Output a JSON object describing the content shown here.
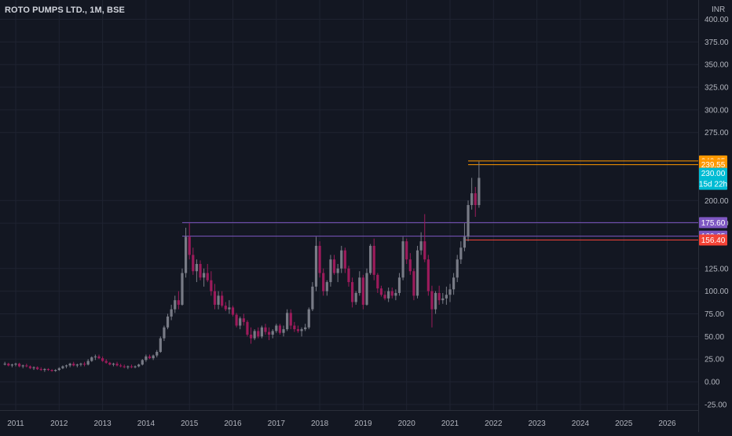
{
  "header": {
    "symbol_title": "ROTO PUMPS LTD., 1M, BSE",
    "currency": "INR"
  },
  "colors": {
    "background": "#131722",
    "grid": "#1f2331",
    "axis_text": "#b2b5be",
    "up_candle": "#787b86",
    "down_candle": "#9c1b5b",
    "level_purple": "#7e57c2",
    "level_orange": "#ff9800",
    "level_red": "#f44336",
    "current_price": "#00bcd4"
  },
  "chart_data": {
    "type": "candlestick",
    "title": "ROTO PUMPS LTD., 1M, BSE",
    "interval": "1M",
    "currency": "INR",
    "x_axis": {
      "type": "date",
      "range": [
        "2010-10",
        "2026-12"
      ],
      "ticks": [
        "2011",
        "2012",
        "2013",
        "2014",
        "2015",
        "2016",
        "2017",
        "2018",
        "2019",
        "2020",
        "2021",
        "2022",
        "2023",
        "2024",
        "2025",
        "2026"
      ]
    },
    "y_axis": {
      "range": [
        -32,
        407
      ],
      "ticks": [
        "-25.00",
        "0.00",
        "25.00",
        "50.00",
        "75.00",
        "100.00",
        "125.00",
        "175.00",
        "200.00",
        "275.00",
        "300.00",
        "325.00",
        "350.00",
        "375.00",
        "400.00"
      ]
    },
    "grid": true,
    "horizontal_levels": [
      {
        "value": 175.6,
        "label": "175.60",
        "color": "#7e57c2",
        "start": "2014-11"
      },
      {
        "value": 160.65,
        "label": "160.65",
        "color": "#7e57c2",
        "start": "2014-11"
      },
      {
        "value": 156.4,
        "label": "156.40",
        "color": "#f44336",
        "start": "2021-05"
      },
      {
        "value": 243.65,
        "label": "243.65",
        "color": "#ff9800",
        "start": "2021-06"
      },
      {
        "value": 239.55,
        "label": "239.55",
        "color": "#ff9800",
        "start": "2021-06"
      }
    ],
    "last_price": {
      "value": 230.0,
      "label": "230.00",
      "countdown": "15d 22h",
      "color": "#00bcd4"
    },
    "series": [
      {
        "values": [
          [
            "2010-10",
            20,
            22,
            18,
            20
          ],
          [
            "2010-11",
            20,
            21,
            17,
            18
          ],
          [
            "2010-12",
            18,
            20,
            16,
            19
          ],
          [
            "2011-01",
            19,
            21,
            17,
            20
          ],
          [
            "2011-02",
            20,
            21,
            16,
            17
          ],
          [
            "2011-03",
            17,
            19,
            15,
            18
          ],
          [
            "2011-04",
            18,
            20,
            16,
            17
          ],
          [
            "2011-05",
            17,
            18,
            14,
            15
          ],
          [
            "2011-06",
            15,
            17,
            13,
            16
          ],
          [
            "2011-07",
            16,
            17,
            13,
            14
          ],
          [
            "2011-08",
            14,
            16,
            12,
            13
          ],
          [
            "2011-09",
            13,
            15,
            11,
            14
          ],
          [
            "2011-10",
            14,
            15,
            12,
            13
          ],
          [
            "2011-11",
            13,
            14,
            11,
            12
          ],
          [
            "2011-12",
            12,
            14,
            11,
            13
          ],
          [
            "2012-01",
            13,
            16,
            12,
            15
          ],
          [
            "2012-02",
            15,
            18,
            14,
            17
          ],
          [
            "2012-03",
            17,
            19,
            15,
            18
          ],
          [
            "2012-04",
            18,
            21,
            16,
            20
          ],
          [
            "2012-05",
            20,
            22,
            17,
            18
          ],
          [
            "2012-06",
            18,
            20,
            16,
            19
          ],
          [
            "2012-07",
            19,
            21,
            17,
            20
          ],
          [
            "2012-08",
            20,
            22,
            17,
            19
          ],
          [
            "2012-09",
            19,
            25,
            18,
            23
          ],
          [
            "2012-10",
            23,
            28,
            22,
            27
          ],
          [
            "2012-11",
            27,
            30,
            24,
            28
          ],
          [
            "2012-12",
            28,
            30,
            25,
            26
          ],
          [
            "2013-01",
            26,
            28,
            22,
            23
          ],
          [
            "2013-02",
            23,
            25,
            20,
            21
          ],
          [
            "2013-03",
            21,
            22,
            18,
            19
          ],
          [
            "2013-04",
            19,
            21,
            17,
            20
          ],
          [
            "2013-05",
            20,
            22,
            17,
            18
          ],
          [
            "2013-06",
            18,
            20,
            16,
            17
          ],
          [
            "2013-07",
            17,
            19,
            15,
            16
          ],
          [
            "2013-08",
            16,
            18,
            14,
            17
          ],
          [
            "2013-09",
            17,
            19,
            15,
            16
          ],
          [
            "2013-10",
            16,
            18,
            15,
            17
          ],
          [
            "2013-11",
            17,
            20,
            16,
            19
          ],
          [
            "2013-12",
            19,
            25,
            18,
            24
          ],
          [
            "2014-01",
            24,
            30,
            22,
            28
          ],
          [
            "2014-02",
            28,
            30,
            25,
            26
          ],
          [
            "2014-03",
            26,
            30,
            24,
            29
          ],
          [
            "2014-04",
            29,
            35,
            27,
            33
          ],
          [
            "2014-05",
            33,
            50,
            32,
            48
          ],
          [
            "2014-06",
            48,
            62,
            45,
            60
          ],
          [
            "2014-07",
            60,
            75,
            58,
            72
          ],
          [
            "2014-08",
            72,
            85,
            68,
            80
          ],
          [
            "2014-09",
            80,
            95,
            76,
            90
          ],
          [
            "2014-10",
            90,
            100,
            80,
            85
          ],
          [
            "2014-11",
            85,
            125,
            84,
            120
          ],
          [
            "2014-12",
            120,
            170,
            115,
            160
          ],
          [
            "2015-01",
            160,
            175,
            135,
            140
          ],
          [
            "2015-02",
            140,
            148,
            118,
            122
          ],
          [
            "2015-03",
            122,
            135,
            110,
            130
          ],
          [
            "2015-04",
            130,
            134,
            112,
            115
          ],
          [
            "2015-05",
            115,
            125,
            105,
            120
          ],
          [
            "2015-06",
            120,
            130,
            110,
            112
          ],
          [
            "2015-07",
            112,
            122,
            95,
            100
          ],
          [
            "2015-08",
            100,
            108,
            80,
            85
          ],
          [
            "2015-09",
            85,
            100,
            80,
            95
          ],
          [
            "2015-10",
            95,
            100,
            82,
            84
          ],
          [
            "2015-11",
            84,
            88,
            78,
            80
          ],
          [
            "2015-12",
            80,
            90,
            75,
            82
          ],
          [
            "2016-01",
            82,
            84,
            72,
            74
          ],
          [
            "2016-02",
            74,
            76,
            60,
            62
          ],
          [
            "2016-03",
            62,
            72,
            58,
            70
          ],
          [
            "2016-04",
            70,
            75,
            62,
            66
          ],
          [
            "2016-05",
            66,
            68,
            50,
            52
          ],
          [
            "2016-06",
            52,
            60,
            42,
            48
          ],
          [
            "2016-07",
            48,
            58,
            46,
            56
          ],
          [
            "2016-08",
            56,
            60,
            48,
            50
          ],
          [
            "2016-09",
            50,
            62,
            48,
            60
          ],
          [
            "2016-10",
            60,
            64,
            52,
            55
          ],
          [
            "2016-11",
            55,
            60,
            46,
            52
          ],
          [
            "2016-12",
            52,
            58,
            48,
            56
          ],
          [
            "2017-01",
            56,
            64,
            54,
            62
          ],
          [
            "2017-02",
            62,
            64,
            52,
            54
          ],
          [
            "2017-03",
            54,
            62,
            50,
            58
          ],
          [
            "2017-04",
            58,
            80,
            56,
            76
          ],
          [
            "2017-05",
            76,
            80,
            58,
            62
          ],
          [
            "2017-06",
            62,
            66,
            55,
            58
          ],
          [
            "2017-07",
            58,
            62,
            54,
            56
          ],
          [
            "2017-08",
            56,
            60,
            50,
            58
          ],
          [
            "2017-09",
            58,
            64,
            56,
            60
          ],
          [
            "2017-10",
            60,
            82,
            58,
            80
          ],
          [
            "2017-11",
            80,
            110,
            78,
            105
          ],
          [
            "2017-12",
            105,
            160,
            100,
            150
          ],
          [
            "2018-01",
            150,
            155,
            115,
            120
          ],
          [
            "2018-02",
            120,
            125,
            95,
            100
          ],
          [
            "2018-03",
            100,
            112,
            95,
            110
          ],
          [
            "2018-04",
            110,
            140,
            105,
            135
          ],
          [
            "2018-05",
            135,
            140,
            118,
            120
          ],
          [
            "2018-06",
            120,
            130,
            110,
            125
          ],
          [
            "2018-07",
            125,
            150,
            120,
            145
          ],
          [
            "2018-08",
            145,
            148,
            120,
            125
          ],
          [
            "2018-09",
            125,
            128,
            105,
            110
          ],
          [
            "2018-10",
            110,
            115,
            82,
            88
          ],
          [
            "2018-11",
            88,
            100,
            85,
            98
          ],
          [
            "2018-12",
            98,
            122,
            95,
            115
          ],
          [
            "2019-01",
            115,
            118,
            80,
            85
          ],
          [
            "2019-02",
            85,
            125,
            84,
            120
          ],
          [
            "2019-03",
            120,
            152,
            118,
            150
          ],
          [
            "2019-04",
            150,
            158,
            112,
            118
          ],
          [
            "2019-05",
            118,
            120,
            98,
            103
          ],
          [
            "2019-06",
            103,
            106,
            94,
            96
          ],
          [
            "2019-07",
            96,
            100,
            90,
            92
          ],
          [
            "2019-08",
            92,
            104,
            88,
            100
          ],
          [
            "2019-09",
            100,
            104,
            92,
            95
          ],
          [
            "2019-10",
            95,
            102,
            90,
            98
          ],
          [
            "2019-11",
            98,
            120,
            95,
            115
          ],
          [
            "2019-12",
            115,
            160,
            112,
            155
          ],
          [
            "2020-01",
            155,
            158,
            130,
            135
          ],
          [
            "2020-02",
            135,
            142,
            118,
            122
          ],
          [
            "2020-03",
            122,
            125,
            90,
            95
          ],
          [
            "2020-04",
            95,
            150,
            92,
            145
          ],
          [
            "2020-05",
            145,
            165,
            140,
            155
          ],
          [
            "2020-06",
            155,
            185,
            132,
            135
          ],
          [
            "2020-07",
            135,
            140,
            95,
            100
          ],
          [
            "2020-08",
            100,
            106,
            60,
            80
          ],
          [
            "2020-09",
            80,
            100,
            75,
            98
          ],
          [
            "2020-10",
            98,
            106,
            85,
            90
          ],
          [
            "2020-11",
            90,
            98,
            86,
            92
          ],
          [
            "2020-12",
            92,
            105,
            85,
            96
          ],
          [
            "2021-01",
            96,
            108,
            88,
            102
          ],
          [
            "2021-02",
            102,
            120,
            96,
            115
          ],
          [
            "2021-03",
            115,
            140,
            110,
            135
          ],
          [
            "2021-04",
            135,
            155,
            130,
            148
          ],
          [
            "2021-05",
            148,
            175,
            144,
            160
          ],
          [
            "2021-06",
            160,
            200,
            155,
            195
          ],
          [
            "2021-07",
            195,
            225,
            190,
            208
          ],
          [
            "2021-08",
            208,
            215,
            182,
            195
          ],
          [
            "2021-09",
            195,
            243,
            192,
            225
          ]
        ]
      }
    ]
  }
}
